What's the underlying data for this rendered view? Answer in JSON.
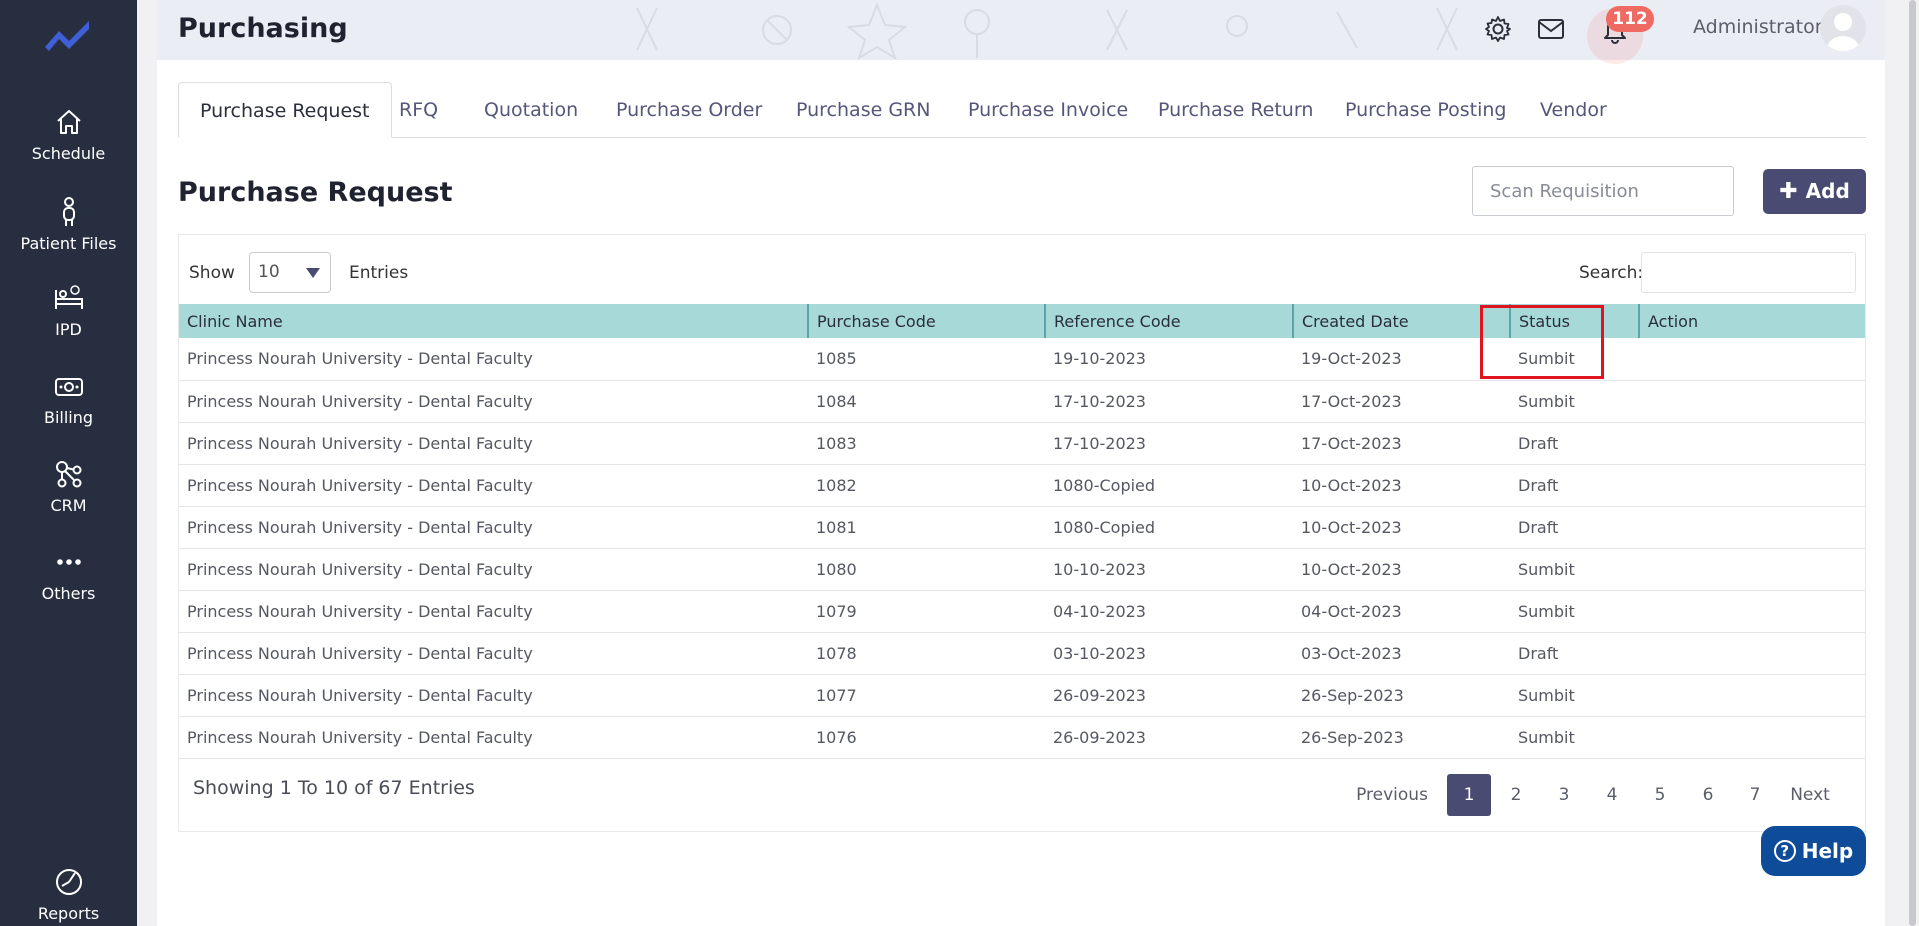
{
  "sidebar": {
    "items": [
      {
        "label": "Schedule",
        "icon": "home-icon"
      },
      {
        "label": "Patient Files",
        "icon": "person-icon"
      },
      {
        "label": "IPD",
        "icon": "bed-icon"
      },
      {
        "label": "Billing",
        "icon": "money-icon"
      },
      {
        "label": "CRM",
        "icon": "network-icon"
      },
      {
        "label": "Others",
        "icon": "more-icon"
      },
      {
        "label": "Reports",
        "icon": "pie-icon"
      }
    ]
  },
  "header": {
    "title": "Purchasing",
    "notification_count": "112",
    "user_name": "Administrator"
  },
  "tabs": [
    "Purchase Request",
    "RFQ",
    "Quotation",
    "Purchase Order",
    "Purchase GRN",
    "Purchase Invoice",
    "Purchase Return",
    "Purchase Posting",
    "Vendor"
  ],
  "page": {
    "heading": "Purchase Request",
    "scan_placeholder": "Scan Requisition",
    "add_label": "Add"
  },
  "table_controls": {
    "show_label": "Show",
    "entries_value": "10",
    "entries_label": "Entries",
    "search_label": "Search:"
  },
  "table": {
    "columns": [
      "Clinic Name",
      "Purchase Code",
      "Reference Code",
      "Created Date",
      "Status",
      "Action"
    ],
    "rows": [
      [
        "Princess Nourah University - Dental Faculty",
        "1085",
        "19-10-2023",
        "19-Oct-2023",
        "Sumbit",
        ""
      ],
      [
        "Princess Nourah University - Dental Faculty",
        "1084",
        "17-10-2023",
        "17-Oct-2023",
        "Sumbit",
        ""
      ],
      [
        "Princess Nourah University - Dental Faculty",
        "1083",
        "17-10-2023",
        "17-Oct-2023",
        "Draft",
        ""
      ],
      [
        "Princess Nourah University - Dental Faculty",
        "1082",
        "1080-Copied",
        "10-Oct-2023",
        "Draft",
        ""
      ],
      [
        "Princess Nourah University - Dental Faculty",
        "1081",
        "1080-Copied",
        "10-Oct-2023",
        "Draft",
        ""
      ],
      [
        "Princess Nourah University - Dental Faculty",
        "1080",
        "10-10-2023",
        "10-Oct-2023",
        "Sumbit",
        ""
      ],
      [
        "Princess Nourah University - Dental Faculty",
        "1079",
        "04-10-2023",
        "04-Oct-2023",
        "Sumbit",
        ""
      ],
      [
        "Princess Nourah University - Dental Faculty",
        "1078",
        "03-10-2023",
        "03-Oct-2023",
        "Draft",
        ""
      ],
      [
        "Princess Nourah University - Dental Faculty",
        "1077",
        "26-09-2023",
        "26-Sep-2023",
        "Sumbit",
        ""
      ],
      [
        "Princess Nourah University - Dental Faculty",
        "1076",
        "26-09-2023",
        "26-Sep-2023",
        "Sumbit",
        ""
      ]
    ]
  },
  "footer": {
    "showing_text": "Showing 1 To 10 of 67 Entries",
    "pagination": {
      "previous": "Previous",
      "pages": [
        "1",
        "2",
        "3",
        "4",
        "5",
        "6",
        "7"
      ],
      "current": "1",
      "next": "Next"
    }
  },
  "help_label": "Help",
  "colors": {
    "sidebar_bg": "#272e3f",
    "accent": "#4a4b72",
    "table_header_bg": "#a7d9d9",
    "highlight": "#e0141e",
    "help_bg": "#0e4c99",
    "badge": "#ef6a63"
  }
}
